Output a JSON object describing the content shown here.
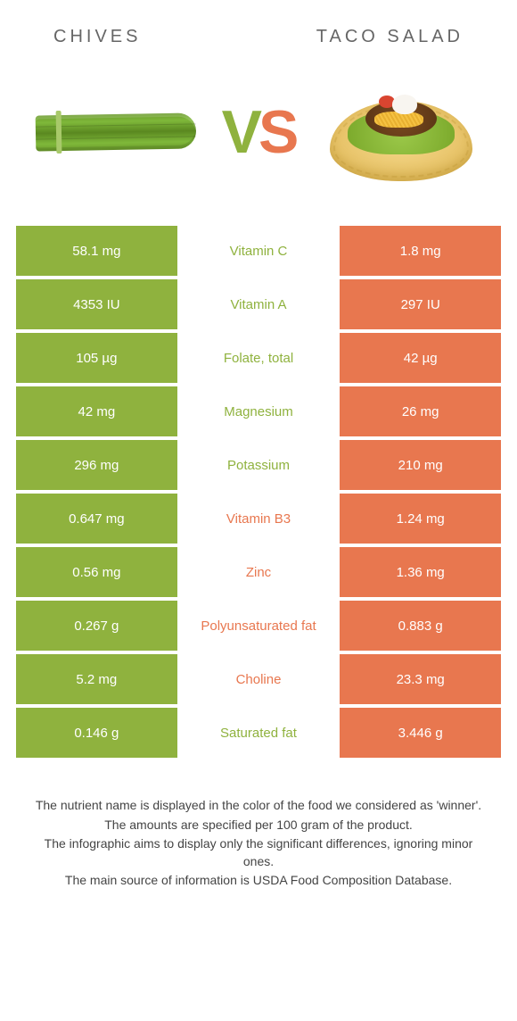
{
  "colors": {
    "left_bg": "#8fb23e",
    "right_bg": "#e8774f",
    "left_text": "#8fb23e",
    "right_text": "#e8774f"
  },
  "header": {
    "left": "CHIVES",
    "right": "TACO SALAD"
  },
  "vs": {
    "v": "V",
    "s": "S"
  },
  "rows": [
    {
      "left": "58.1 mg",
      "label": "Vitamin C",
      "right": "1.8 mg",
      "winner": "left"
    },
    {
      "left": "4353 IU",
      "label": "Vitamin A",
      "right": "297 IU",
      "winner": "left"
    },
    {
      "left": "105 µg",
      "label": "Folate, total",
      "right": "42 µg",
      "winner": "left"
    },
    {
      "left": "42 mg",
      "label": "Magnesium",
      "right": "26 mg",
      "winner": "left"
    },
    {
      "left": "296 mg",
      "label": "Potassium",
      "right": "210 mg",
      "winner": "left"
    },
    {
      "left": "0.647 mg",
      "label": "Vitamin B3",
      "right": "1.24 mg",
      "winner": "right"
    },
    {
      "left": "0.56 mg",
      "label": "Zinc",
      "right": "1.36 mg",
      "winner": "right"
    },
    {
      "left": "0.267 g",
      "label": "Polyunsaturated fat",
      "right": "0.883 g",
      "winner": "right"
    },
    {
      "left": "5.2 mg",
      "label": "Choline",
      "right": "23.3 mg",
      "winner": "right"
    },
    {
      "left": "0.146 g",
      "label": "Saturated fat",
      "right": "3.446 g",
      "winner": "left"
    }
  ],
  "footer": {
    "l1": "The nutrient name is displayed in the color of the food we considered as 'winner'.",
    "l2": "The amounts are specified per 100 gram of the product.",
    "l3": "The infographic aims to display only the significant differences, ignoring minor ones.",
    "l4": "The main source of information is USDA Food Composition Database."
  }
}
